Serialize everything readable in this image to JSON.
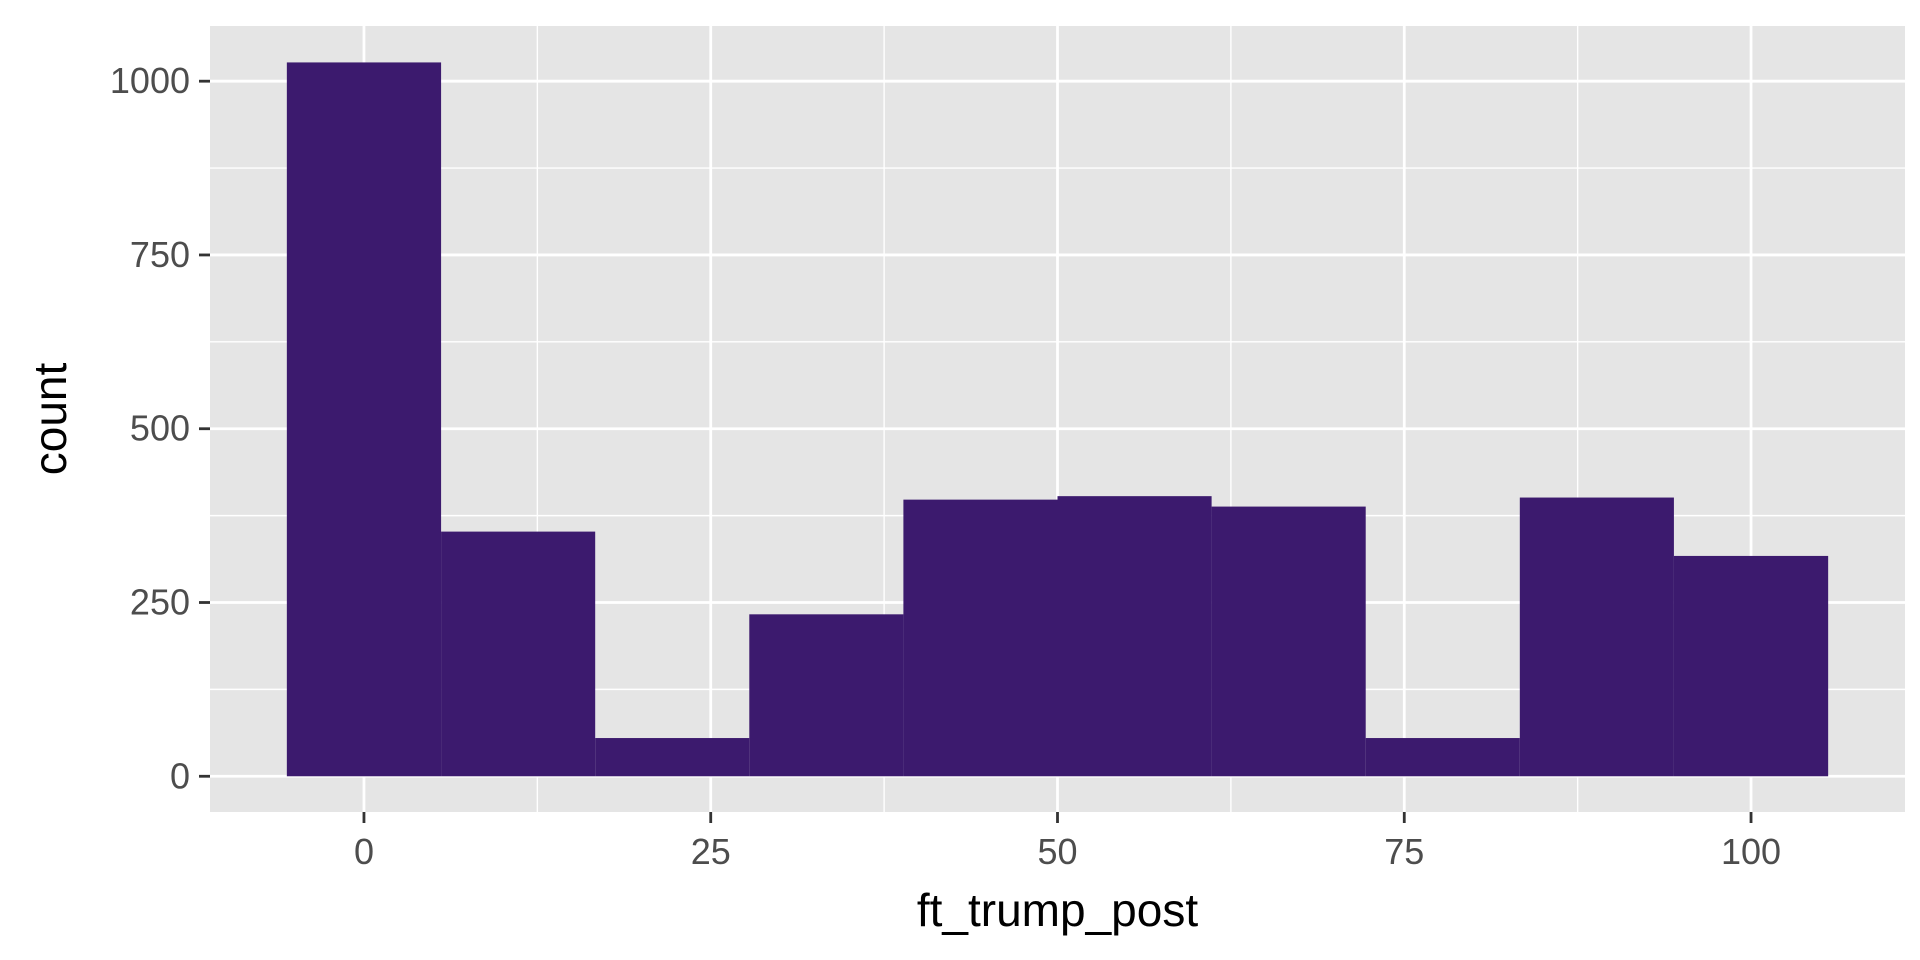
{
  "chart_data": {
    "type": "bar",
    "subtype": "histogram",
    "xlabel": "ft_trump_post",
    "ylabel": "count",
    "xlim": [
      -11.1,
      111.1
    ],
    "ylim": [
      -51.4,
      1079.4
    ],
    "x_ticks": [
      0,
      25,
      50,
      75,
      100
    ],
    "x_tick_labels": [
      "0",
      "25",
      "50",
      "75",
      "100"
    ],
    "y_ticks": [
      0,
      250,
      500,
      750,
      1000
    ],
    "y_tick_labels": [
      "0",
      "250",
      "500",
      "750",
      "1000"
    ],
    "bins": [
      {
        "x0": -5.56,
        "x1": 5.56,
        "count": 1027
      },
      {
        "x0": 5.56,
        "x1": 16.67,
        "count": 352
      },
      {
        "x0": 16.67,
        "x1": 27.78,
        "count": 55
      },
      {
        "x0": 27.78,
        "x1": 38.89,
        "count": 233
      },
      {
        "x0": 38.89,
        "x1": 50.0,
        "count": 398
      },
      {
        "x0": 50.0,
        "x1": 61.11,
        "count": 403
      },
      {
        "x0": 61.11,
        "x1": 72.22,
        "count": 388
      },
      {
        "x0": 72.22,
        "x1": 83.33,
        "count": 55
      },
      {
        "x0": 83.33,
        "x1": 94.44,
        "count": 401
      },
      {
        "x0": 94.44,
        "x1": 105.56,
        "count": 317
      }
    ],
    "colors": {
      "bar": "#3c1a6e",
      "panel": "#e5e5e5",
      "grid": "#ffffff"
    },
    "grid": true,
    "legend": "none"
  }
}
